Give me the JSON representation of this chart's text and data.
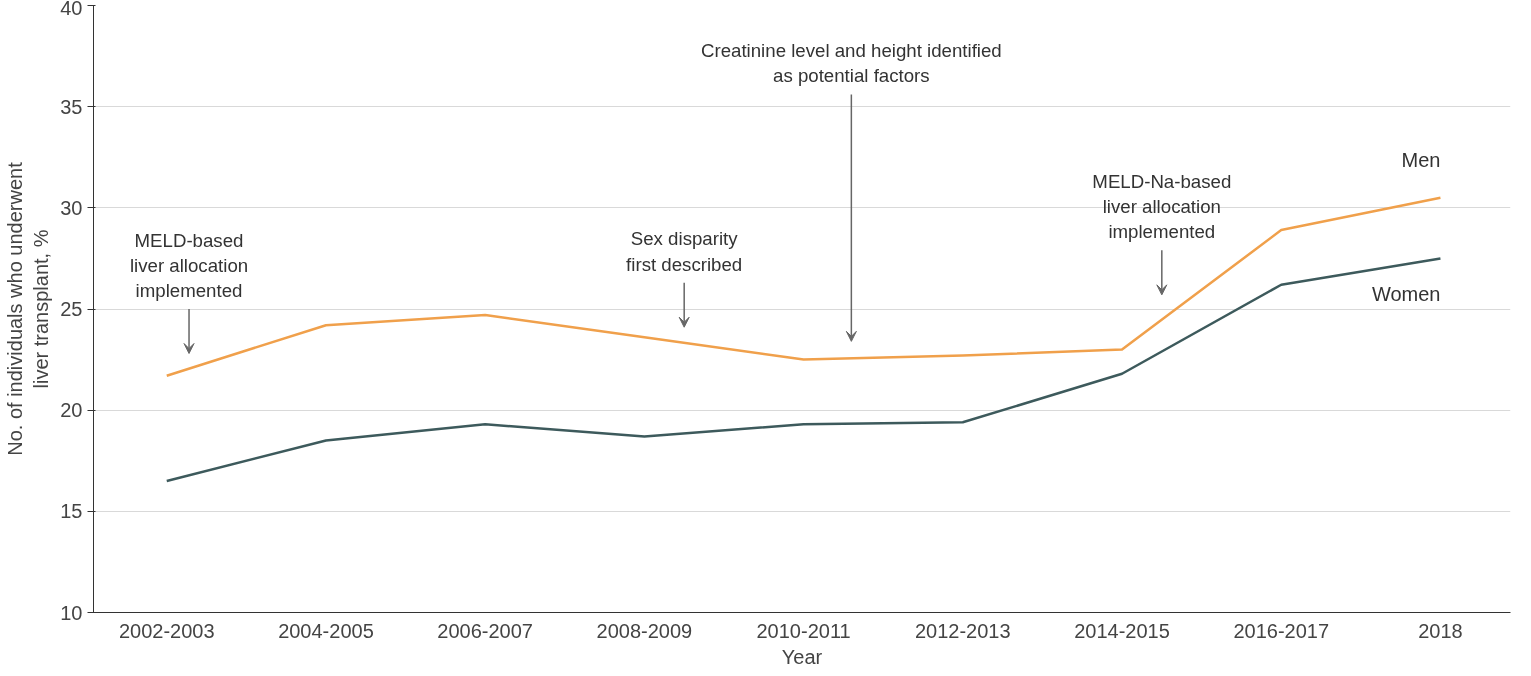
{
  "chart_data": {
    "type": "line",
    "xlabel": "Year",
    "ylabel": "No. of individuals who underwent\nliver transplant, %",
    "categories": [
      "2002-2003",
      "2004-2005",
      "2006-2007",
      "2008-2009",
      "2010-2011",
      "2012-2013",
      "2014-2015",
      "2016-2017",
      "2018"
    ],
    "series": [
      {
        "name": "Men",
        "color": "#f0a04b",
        "values": [
          21.7,
          24.2,
          24.7,
          23.6,
          22.5,
          22.7,
          23.0,
          28.9,
          30.5
        ]
      },
      {
        "name": "Women",
        "color": "#3d5a5c",
        "values": [
          16.5,
          18.5,
          19.3,
          18.7,
          19.3,
          19.4,
          21.8,
          26.2,
          27.5
        ]
      }
    ],
    "ylim": [
      10,
      40
    ],
    "yticks": [
      10,
      15,
      20,
      25,
      30,
      35,
      40
    ],
    "grid": "y",
    "annotations": [
      "MELD-based\nliver allocation\nimplemented",
      "Sex disparity\nfirst described",
      "Creatinine level and height identified\nas potential factors",
      "MELD-Na-based\nliver allocation\nimplemented"
    ]
  }
}
